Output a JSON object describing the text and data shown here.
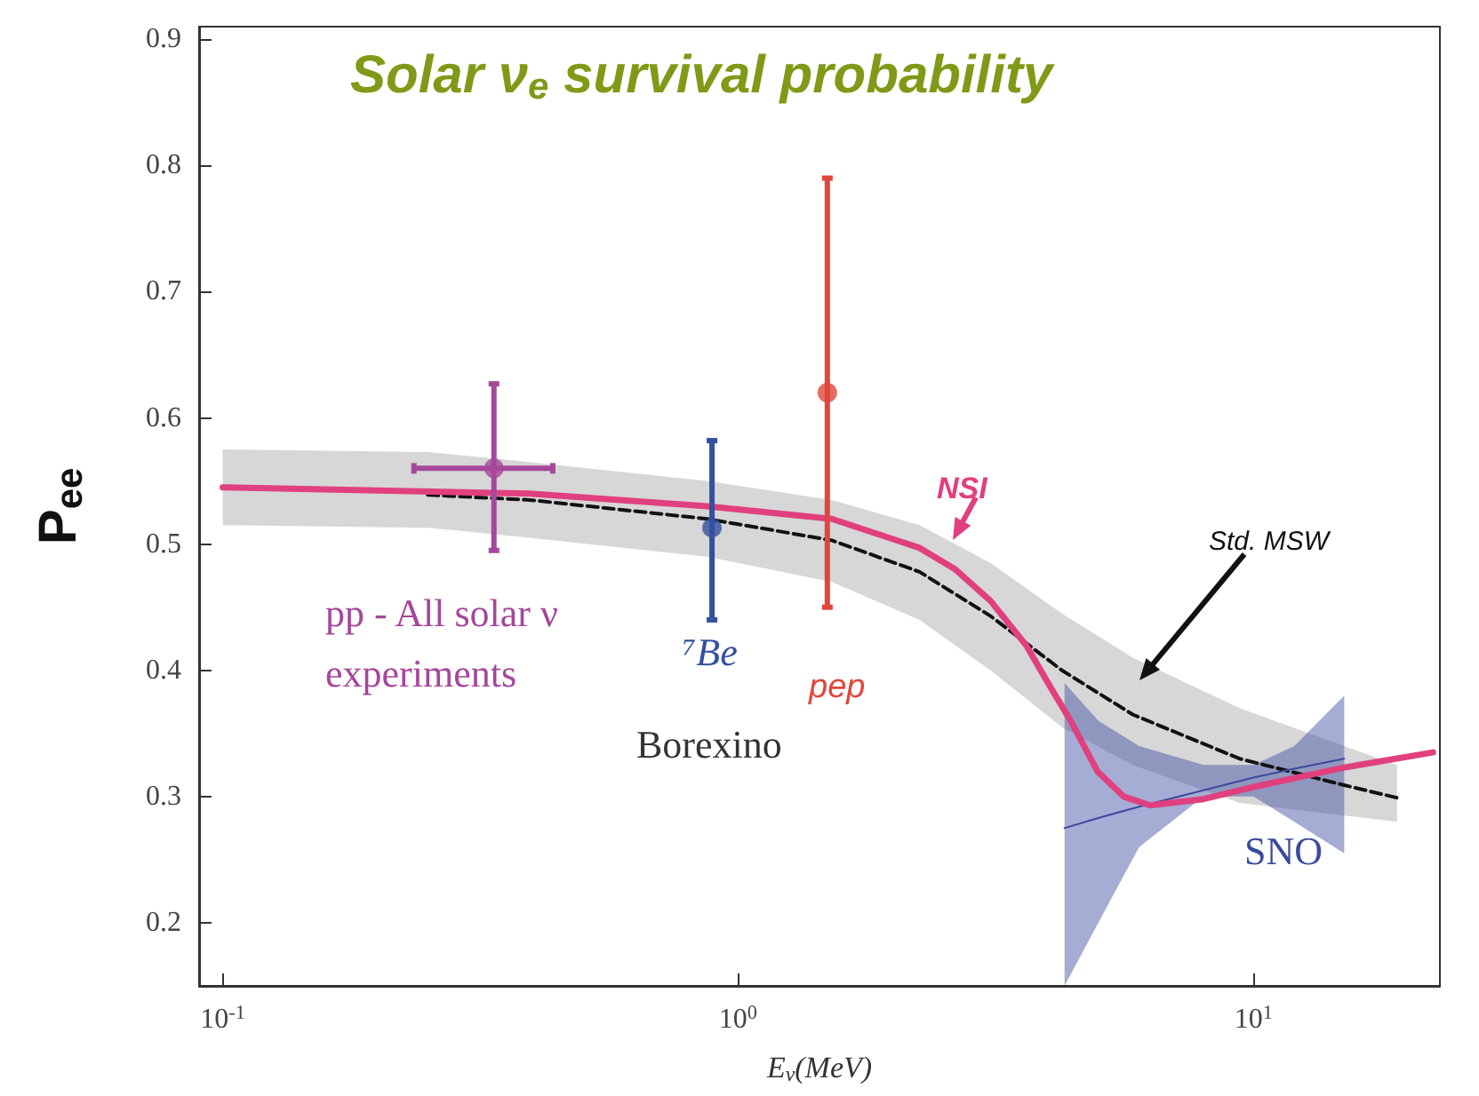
{
  "chart_data": {
    "type": "line",
    "title": "Solar ν$_{e}$ survival probability",
    "xlabel": "E$_{ν}$(MeV)",
    "ylabel": "P$_{ee}$",
    "log": "x",
    "xlim": [
      0.09,
      23
    ],
    "ylim": [
      0.15,
      0.91
    ],
    "xticks": [
      {
        "value": 0.1,
        "label": "10$^{-1}$"
      },
      {
        "value": 1,
        "label": "10$^{0}$"
      },
      {
        "value": 10,
        "label": "10$^{1}$"
      }
    ],
    "yticks": [
      0.2,
      0.3,
      0.4,
      0.5,
      0.6,
      0.7,
      0.8,
      0.9
    ],
    "grid": false,
    "legend": false,
    "annotations": [
      "Borexino"
    ],
    "series": [
      {
        "name": "Std. MSW",
        "type": "line",
        "line_style": "dashed",
        "marker": "none",
        "color": "#111111",
        "x": [
          0.1,
          0.25,
          0.394,
          0.871,
          1.52,
          2.25,
          3.09,
          4.25,
          5.83,
          9.4,
          15,
          19
        ],
        "values": [
          null,
          0.539,
          0.535,
          0.52,
          0.503,
          0.478,
          0.443,
          0.4,
          0.365,
          0.33,
          0.309,
          0.299
        ],
        "lower": [
          0.515,
          0.513,
          0.505,
          0.49,
          0.47,
          0.44,
          0.4,
          0.355,
          0.325,
          0.295,
          0.285,
          0.28
        ],
        "upper": [
          0.575,
          0.573,
          0.565,
          0.55,
          0.535,
          0.515,
          0.485,
          0.445,
          0.41,
          0.37,
          0.34,
          0.325
        ]
      },
      {
        "name": "SNO",
        "type": "line",
        "line_style": "solid",
        "marker": "none",
        "color": "#3a4aa0",
        "x": [
          4.3,
          5,
          6,
          8,
          10,
          12,
          15
        ],
        "values": [
          0.275,
          0.283,
          0.292,
          0.305,
          0.315,
          0.322,
          0.33
        ],
        "lower": [
          0.15,
          0.2,
          0.26,
          0.3,
          0.3,
          0.28,
          0.255
        ],
        "upper": [
          0.39,
          0.36,
          0.34,
          0.325,
          0.325,
          0.34,
          0.38
        ]
      },
      {
        "name": "NSI",
        "type": "line",
        "line_style": "solid",
        "marker": "none",
        "color": "#e0407e",
        "x": [
          0.1,
          0.394,
          0.871,
          1.52,
          2.25,
          2.64,
          3.09,
          3.62,
          4.06,
          4.42,
          4.98,
          5.6,
          6.3,
          8,
          10.1,
          15,
          22.3
        ],
        "values": [
          0.545,
          0.54,
          0.53,
          0.52,
          0.497,
          0.48,
          0.455,
          0.42,
          0.385,
          0.36,
          0.32,
          0.3,
          0.293,
          0.298,
          0.308,
          0.323,
          0.335
        ]
      },
      {
        "name": "pp - All solar ν experiments",
        "type": "scatter",
        "marker": "circle",
        "color": "#a5479a",
        "x": [
          0.336
        ],
        "values": [
          0.56
        ],
        "errors": [
          [
            0.495,
            0.627
          ]
        ],
        "xerrors": [
          [
            0.235,
            0.437
          ]
        ]
      },
      {
        "name": "⁷Be",
        "type": "scatter",
        "marker": "circle",
        "color": "#34509e",
        "x": [
          0.89
        ],
        "values": [
          0.513
        ],
        "errors": [
          [
            0.44,
            0.582
          ]
        ]
      },
      {
        "name": "pep",
        "type": "scatter",
        "marker": "circle",
        "color": "#e0463c",
        "x": [
          1.49
        ],
        "values": [
          0.62
        ],
        "errors": [
          [
            0.45,
            0.79
          ]
        ]
      }
    ]
  }
}
